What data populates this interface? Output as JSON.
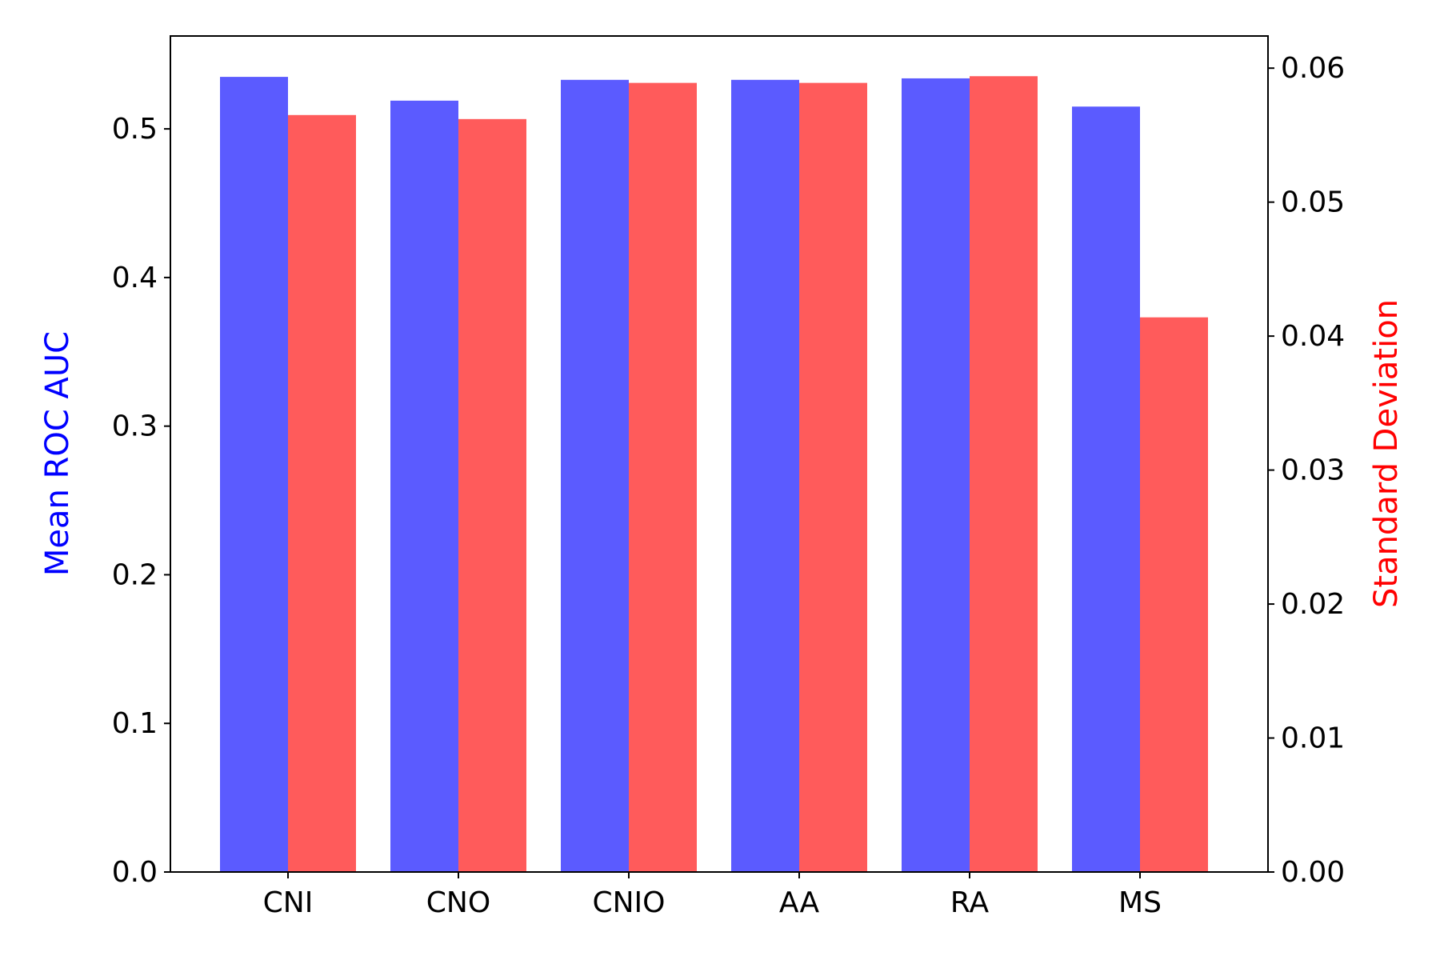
{
  "chart_data": {
    "type": "bar",
    "categories": [
      "CNI",
      "CNO",
      "CNIO",
      "AA",
      "RA",
      "MS"
    ],
    "series": [
      {
        "name": "Mean ROC AUC",
        "axis": "left",
        "color": "#5b5bff",
        "values": [
          0.535,
          0.519,
          0.533,
          0.533,
          0.534,
          0.515
        ]
      },
      {
        "name": "Standard Deviation",
        "axis": "right",
        "color": "#ff5b5b",
        "values": [
          0.0565,
          0.0562,
          0.0589,
          0.0589,
          0.0594,
          0.0414
        ]
      }
    ],
    "ylabel": "Mean ROC AUC",
    "ylabel_color": "#0000ff",
    "y2label": "Standard Deviation",
    "y2label_color": "#ff0000",
    "ylim": [
      0,
      0.5625
    ],
    "y2lim": [
      0,
      0.0624
    ],
    "yticks": [
      "0.0",
      "0.1",
      "0.2",
      "0.3",
      "0.4",
      "0.5"
    ],
    "y2ticks": [
      "0.00",
      "0.01",
      "0.02",
      "0.03",
      "0.04",
      "0.05",
      "0.06"
    ],
    "grid": false,
    "title": "",
    "xlabel": ""
  }
}
